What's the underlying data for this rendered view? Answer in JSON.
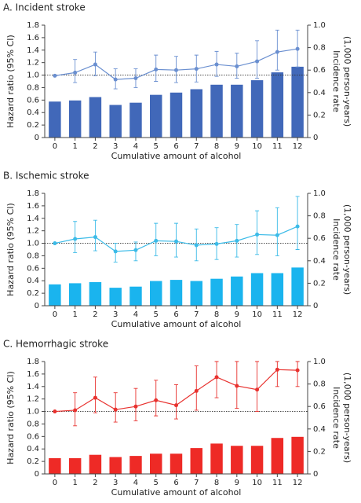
{
  "chart_data": [
    {
      "type": "bar_line",
      "title": "A. Incident stroke",
      "xlabel": "Cumulative amount of alcohol",
      "ylabel": "Hazard ratio (95% CI)",
      "y2label": [
        "Incidence rate",
        "(1,000 person-years)"
      ],
      "categories": [
        "0",
        "1",
        "2",
        "3",
        "4",
        "5",
        "6",
        "7",
        "8",
        "9",
        "10",
        "11",
        "12"
      ],
      "ylim": [
        0,
        1.8
      ],
      "yticks": [
        0,
        0.2,
        0.4,
        0.6,
        0.8,
        {
          "value": 1,
          "label": "1.0"
        },
        1.2,
        1.4,
        1.6,
        1.8
      ],
      "y2lim": [
        0,
        1
      ],
      "y2ticks": [
        0,
        0.2,
        0.4,
        0.6,
        0.8,
        {
          "value": 1,
          "label": "1.0"
        }
      ],
      "hline": 1,
      "bars": {
        "axis": "y2",
        "color": "#4168b9",
        "values": [
          0.32,
          0.33,
          0.36,
          0.29,
          0.31,
          0.38,
          0.4,
          0.43,
          0.47,
          0.47,
          0.51,
          0.58,
          0.63
        ]
      },
      "line": {
        "color": "#6a8fd0",
        "values": [
          0.99,
          1.04,
          1.17,
          0.93,
          0.95,
          1.09,
          1.08,
          1.1,
          1.17,
          1.14,
          1.22,
          1.37,
          1.42
        ],
        "ci_low": [
          null,
          0.88,
          0.99,
          0.78,
          0.8,
          0.9,
          0.88,
          0.89,
          0.98,
          0.95,
          0.95,
          1.08,
          1.13
        ],
        "ci_high": [
          null,
          1.25,
          1.37,
          1.1,
          1.1,
          1.32,
          1.3,
          1.32,
          1.38,
          1.35,
          1.55,
          1.72,
          1.72
        ]
      }
    },
    {
      "type": "bar_line",
      "title": "B. Ischemic stroke",
      "xlabel": "Cumulative amount of alcohol",
      "ylabel": "Hazard ratio (95% CI)",
      "y2label": [
        "Incidence rate",
        "(1,000 person-years)"
      ],
      "categories": [
        "0",
        "1",
        "2",
        "3",
        "4",
        "5",
        "6",
        "7",
        "8",
        "9",
        "10",
        "11",
        "12"
      ],
      "ylim": [
        0,
        1.8
      ],
      "yticks": [
        0,
        0.2,
        0.4,
        0.6,
        0.8,
        {
          "value": 1,
          "label": "1.0"
        },
        1.2,
        1.4,
        1.6,
        1.8
      ],
      "y2lim": [
        0,
        1
      ],
      "y2ticks": [
        0,
        0.2,
        0.4,
        0.6,
        0.8,
        {
          "value": 1,
          "label": "1.0"
        }
      ],
      "hline": 1,
      "bars": {
        "axis": "y2",
        "color": "#1ab4ee",
        "values": [
          0.19,
          0.2,
          0.21,
          0.16,
          0.17,
          0.22,
          0.23,
          0.22,
          0.24,
          0.26,
          0.29,
          0.29,
          0.34
        ]
      },
      "line": {
        "color": "#3bbbe8",
        "values": [
          1.0,
          1.07,
          1.1,
          0.87,
          0.89,
          1.04,
          1.03,
          0.97,
          0.99,
          1.04,
          1.14,
          1.13,
          1.27
        ],
        "ci_low": [
          null,
          0.85,
          0.88,
          0.7,
          0.72,
          0.8,
          0.78,
          0.72,
          0.74,
          0.78,
          0.82,
          0.8,
          0.9
        ],
        "ci_high": [
          null,
          1.35,
          1.37,
          1.0,
          1.02,
          1.32,
          1.32,
          1.23,
          1.25,
          1.3,
          1.52,
          1.57,
          1.75
        ]
      }
    },
    {
      "type": "bar_line",
      "title": "C. Hemorrhagic stroke",
      "xlabel": "Cumulative amount of alcohol",
      "ylabel": "Hazard ratio (95% CI)",
      "y2label": [
        "Incidence rate",
        "(1,000 person-years)"
      ],
      "categories": [
        "0",
        "1",
        "2",
        "3",
        "4",
        "5",
        "6",
        "7",
        "8",
        "9",
        "10",
        "11",
        "12"
      ],
      "ylim": [
        0,
        1.8
      ],
      "yticks": [
        0,
        0.2,
        0.4,
        0.6,
        0.8,
        {
          "value": 1,
          "label": "1.0"
        },
        1.2,
        1.4,
        1.6,
        1.8
      ],
      "y2lim": [
        0,
        1
      ],
      "y2ticks": [
        0,
        0.2,
        0.4,
        0.6,
        0.8,
        {
          "value": 1,
          "label": "1.0"
        }
      ],
      "hline": 1,
      "bars": {
        "axis": "y2",
        "color": "#ee2a26",
        "values": [
          0.14,
          0.14,
          0.17,
          0.15,
          0.16,
          0.18,
          0.18,
          0.23,
          0.27,
          0.25,
          0.25,
          0.32,
          0.33
        ]
      },
      "line": {
        "color": "#e8312e",
        "values": [
          1.0,
          1.02,
          1.22,
          1.03,
          1.08,
          1.18,
          1.1,
          1.33,
          1.55,
          1.41,
          1.35,
          1.67,
          1.66
        ],
        "ci_low": [
          null,
          0.77,
          0.98,
          0.83,
          0.85,
          0.93,
          0.88,
          1.02,
          1.22,
          1.05,
          1.0,
          1.4,
          1.4
        ],
        "ci_high": [
          null,
          1.3,
          1.55,
          1.3,
          1.37,
          1.5,
          1.43,
          1.73,
          1.8,
          1.8,
          1.8,
          1.8,
          1.8
        ]
      }
    }
  ]
}
